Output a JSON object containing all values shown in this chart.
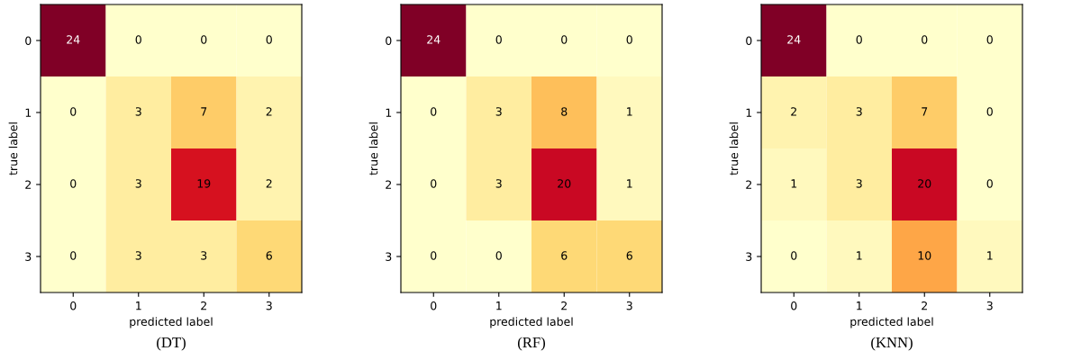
{
  "chart_data": [
    {
      "type": "heatmap",
      "xlabel": "predicted label",
      "ylabel": "true label",
      "annotations": [
        "(DT)"
      ],
      "data_labels": true,
      "categories": [
        "0",
        "1",
        "2",
        "3"
      ],
      "y_categories": [
        "0",
        "1",
        "2",
        "3"
      ],
      "cells": [
        [
          24,
          0,
          0,
          0
        ],
        [
          0,
          3,
          7,
          2
        ],
        [
          0,
          3,
          19,
          2
        ],
        [
          0,
          3,
          3,
          6
        ]
      ]
    },
    {
      "type": "heatmap",
      "xlabel": "predicted label",
      "ylabel": "true label",
      "annotations": [
        "(RF)"
      ],
      "data_labels": true,
      "categories": [
        "0",
        "1",
        "2",
        "3"
      ],
      "y_categories": [
        "0",
        "1",
        "2",
        "3"
      ],
      "cells": [
        [
          24,
          0,
          0,
          0
        ],
        [
          0,
          3,
          8,
          1
        ],
        [
          0,
          3,
          20,
          1
        ],
        [
          0,
          0,
          6,
          6
        ]
      ]
    },
    {
      "type": "heatmap",
      "xlabel": "predicted label",
      "ylabel": "true label",
      "annotations": [
        "(KNN)"
      ],
      "data_labels": true,
      "categories": [
        "0",
        "1",
        "2",
        "3"
      ],
      "y_categories": [
        "0",
        "1",
        "2",
        "3"
      ],
      "cells": [
        [
          24,
          0,
          0,
          0
        ],
        [
          2,
          3,
          7,
          0
        ],
        [
          1,
          3,
          20,
          0
        ],
        [
          0,
          1,
          10,
          1
        ]
      ]
    }
  ]
}
